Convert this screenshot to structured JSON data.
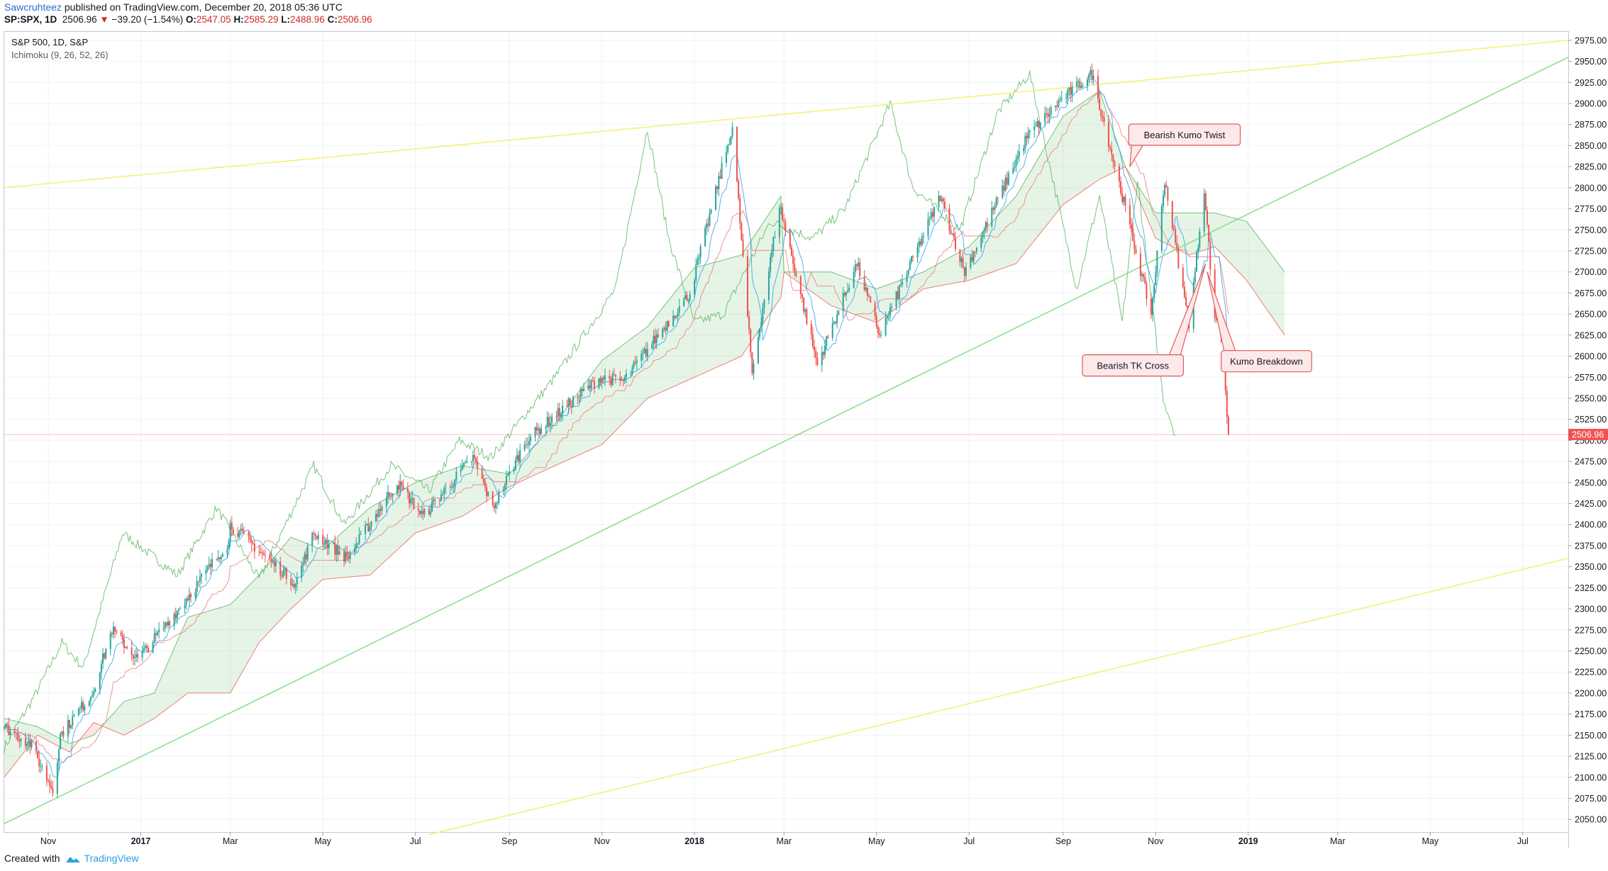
{
  "header": {
    "author": "Sawcruhteez",
    "published": "published on TradingView.com, December 20, 2018 05:36 UTC",
    "symbol": "SP:SPX, 1D",
    "last": "2506.96",
    "change_arrow": "▼",
    "change": "−39.20 (−1.54%)",
    "o_label": "O:",
    "o": "2547.05",
    "h_label": "H:",
    "h": "2585.29",
    "l_label": "L:",
    "l": "2488.96",
    "c_label": "C:",
    "c": "2506.96"
  },
  "footer": {
    "created_with": "Created with",
    "brand": "TradingView"
  },
  "colors": {
    "up": "#26a69a",
    "down": "#ef5350",
    "tenkan": "#2196f3",
    "kijun": "#e57373",
    "chikou": "#4caf50",
    "kumo_bull": "#4caf50",
    "kumo_bear": "#ef5350",
    "channel_yellow": "#f5f07a",
    "channel_green": "#8de08d",
    "price_label": "#ef5350"
  },
  "chart_data": {
    "type": "candlestick",
    "title": "S&P 500, 1D, S&P",
    "indicator": "Ichimoku (9, 26, 52, 26)",
    "last_price": 2506.96,
    "last_price_label": "2506.96",
    "ylim": [
      2035,
      2985
    ],
    "yticks": [
      2050,
      2075,
      2100,
      2125,
      2150,
      2175,
      2200,
      2225,
      2250,
      2275,
      2300,
      2325,
      2350,
      2375,
      2400,
      2425,
      2450,
      2475,
      2500,
      2525,
      2550,
      2575,
      2600,
      2625,
      2650,
      2675,
      2700,
      2725,
      2750,
      2775,
      2800,
      2825,
      2850,
      2875,
      2900,
      2925,
      2950,
      2975
    ],
    "x_range": [
      "2016-10-03",
      "2019-07-31"
    ],
    "xticks": [
      {
        "date": "2016-11-01",
        "label": "Nov",
        "bold": false
      },
      {
        "date": "2017-01-01",
        "label": "2017",
        "bold": true
      },
      {
        "date": "2017-03-01",
        "label": "Mar",
        "bold": false
      },
      {
        "date": "2017-05-01",
        "label": "May",
        "bold": false
      },
      {
        "date": "2017-07-01",
        "label": "Jul",
        "bold": false
      },
      {
        "date": "2017-09-01",
        "label": "Sep",
        "bold": false
      },
      {
        "date": "2017-11-01",
        "label": "Nov",
        "bold": false
      },
      {
        "date": "2018-01-01",
        "label": "2018",
        "bold": true
      },
      {
        "date": "2018-03-01",
        "label": "Mar",
        "bold": false
      },
      {
        "date": "2018-05-01",
        "label": "May",
        "bold": false
      },
      {
        "date": "2018-07-01",
        "label": "Jul",
        "bold": false
      },
      {
        "date": "2018-09-01",
        "label": "Sep",
        "bold": false
      },
      {
        "date": "2018-11-01",
        "label": "Nov",
        "bold": false
      },
      {
        "date": "2019-01-01",
        "label": "2019",
        "bold": true
      },
      {
        "date": "2019-03-01",
        "label": "Mar",
        "bold": false
      },
      {
        "date": "2019-05-01",
        "label": "May",
        "bold": false
      },
      {
        "date": "2019-07-01",
        "label": "Jul",
        "bold": false
      }
    ],
    "price_path": [
      [
        "2016-10-03",
        2160
      ],
      [
        "2016-10-20",
        2140
      ],
      [
        "2016-11-04",
        2085
      ],
      [
        "2016-11-09",
        2150
      ],
      [
        "2016-11-30",
        2200
      ],
      [
        "2016-12-13",
        2275
      ],
      [
        "2016-12-30",
        2240
      ],
      [
        "2017-01-26",
        2300
      ],
      [
        "2017-02-28",
        2380
      ],
      [
        "2017-03-01",
        2400
      ],
      [
        "2017-04-13",
        2330
      ],
      [
        "2017-04-25",
        2390
      ],
      [
        "2017-05-17",
        2360
      ],
      [
        "2017-06-19",
        2450
      ],
      [
        "2017-07-06",
        2410
      ],
      [
        "2017-08-08",
        2480
      ],
      [
        "2017-08-21",
        2420
      ],
      [
        "2017-09-12",
        2500
      ],
      [
        "2017-10-31",
        2575
      ],
      [
        "2017-11-15",
        2570
      ],
      [
        "2017-12-29",
        2675
      ],
      [
        "2018-01-26",
        2872
      ],
      [
        "2018-02-08",
        2580
      ],
      [
        "2018-02-26",
        2780
      ],
      [
        "2018-03-23",
        2590
      ],
      [
        "2018-04-18",
        2710
      ],
      [
        "2018-05-03",
        2625
      ],
      [
        "2018-06-12",
        2790
      ],
      [
        "2018-06-28",
        2700
      ],
      [
        "2018-08-08",
        2860
      ],
      [
        "2018-08-31",
        2905
      ],
      [
        "2018-09-20",
        2935
      ],
      [
        "2018-10-10",
        2790
      ],
      [
        "2018-10-29",
        2650
      ],
      [
        "2018-11-07",
        2810
      ],
      [
        "2018-11-23",
        2635
      ],
      [
        "2018-12-03",
        2800
      ],
      [
        "2018-12-10",
        2640
      ],
      [
        "2018-12-13",
        2650
      ],
      [
        "2018-12-19",
        2506.96
      ]
    ],
    "chikou_path": [
      [
        "2016-10-03",
        2135
      ],
      [
        "2016-10-24",
        2200
      ],
      [
        "2016-11-10",
        2260
      ],
      [
        "2016-11-24",
        2230
      ],
      [
        "2016-12-20",
        2390
      ],
      [
        "2017-01-25",
        2340
      ],
      [
        "2017-02-20",
        2420
      ],
      [
        "2017-03-20",
        2335
      ],
      [
        "2017-04-25",
        2470
      ],
      [
        "2017-05-15",
        2400
      ],
      [
        "2017-06-15",
        2470
      ],
      [
        "2017-07-10",
        2440
      ],
      [
        "2017-07-30",
        2500
      ],
      [
        "2017-08-20",
        2480
      ],
      [
        "2017-10-01",
        2575
      ],
      [
        "2017-11-10",
        2680
      ],
      [
        "2017-12-01",
        2870
      ],
      [
        "2017-12-15",
        2740
      ],
      [
        "2018-01-01",
        2640
      ],
      [
        "2018-01-20",
        2650
      ],
      [
        "2018-02-20",
        2760
      ],
      [
        "2018-03-20",
        2740
      ],
      [
        "2018-04-10",
        2775
      ],
      [
        "2018-05-10",
        2900
      ],
      [
        "2018-05-25",
        2800
      ],
      [
        "2018-06-25",
        2750
      ],
      [
        "2018-07-20",
        2890
      ],
      [
        "2018-08-10",
        2935
      ],
      [
        "2018-08-30",
        2770
      ],
      [
        "2018-09-10",
        2680
      ],
      [
        "2018-09-25",
        2790
      ],
      [
        "2018-10-10",
        2640
      ],
      [
        "2018-10-20",
        2810
      ],
      [
        "2018-10-30",
        2655
      ],
      [
        "2018-11-06",
        2550
      ],
      [
        "2018-11-14",
        2506.96
      ]
    ],
    "cloud_path": [
      [
        "2016-10-03",
        2170,
        2100
      ],
      [
        "2016-10-25",
        2160,
        2150
      ],
      [
        "2016-11-15",
        2140,
        2130
      ],
      [
        "2016-12-01",
        2150,
        2165
      ],
      [
        "2016-12-21",
        2190,
        2150
      ],
      [
        "2017-01-10",
        2200,
        2170
      ],
      [
        "2017-02-01",
        2290,
        2200
      ],
      [
        "2017-03-01",
        2305,
        2200
      ],
      [
        "2017-03-20",
        2340,
        2260
      ],
      [
        "2017-04-10",
        2385,
        2300
      ],
      [
        "2017-05-01",
        2370,
        2335
      ],
      [
        "2017-06-01",
        2420,
        2340
      ],
      [
        "2017-07-01",
        2450,
        2390
      ],
      [
        "2017-08-01",
        2470,
        2410
      ],
      [
        "2017-09-01",
        2460,
        2445
      ],
      [
        "2017-10-01",
        2520,
        2470
      ],
      [
        "2017-11-01",
        2595,
        2495
      ],
      [
        "2017-12-01",
        2635,
        2550
      ],
      [
        "2018-01-01",
        2705,
        2575
      ],
      [
        "2018-02-01",
        2720,
        2600
      ],
      [
        "2018-02-27",
        2790,
        2670
      ],
      [
        "2018-03-01",
        2700,
        2700
      ],
      [
        "2018-04-01",
        2700,
        2660
      ],
      [
        "2018-05-01",
        2680,
        2640
      ],
      [
        "2018-06-01",
        2700,
        2680
      ],
      [
        "2018-07-01",
        2730,
        2690
      ],
      [
        "2018-08-01",
        2790,
        2710
      ],
      [
        "2018-09-01",
        2885,
        2780
      ],
      [
        "2018-09-25",
        2915,
        2810
      ],
      [
        "2018-10-12",
        2825,
        2825
      ],
      [
        "2018-11-01",
        2770,
        2740
      ],
      [
        "2018-11-23",
        2770,
        2720
      ],
      [
        "2018-12-10",
        2770,
        2730
      ],
      [
        "2018-12-31",
        2760,
        2690
      ],
      [
        "2019-01-25",
        2700,
        2625
      ]
    ],
    "annotations": [
      {
        "label": "Bearish Kumo Twist",
        "date": "2018-10-15",
        "price": 2825,
        "box_date": "2018-11-20",
        "box_price": 2863
      },
      {
        "label": "Bearish TK Cross",
        "date": "2018-12-04",
        "price": 2710,
        "box_date": "2018-10-17",
        "box_price": 2589
      },
      {
        "label": "Kumo Breakdown",
        "date": "2018-12-05",
        "price": 2700,
        "box_date": "2019-01-13",
        "box_price": 2594
      }
    ],
    "trendlines": [
      {
        "color": "yellow",
        "from": [
          "2016-10-03",
          2800
        ],
        "to": [
          "2019-07-31",
          2975
        ]
      },
      {
        "color": "green",
        "from": [
          "2016-10-03",
          2045
        ],
        "to": [
          "2019-07-31",
          2955
        ]
      },
      {
        "color": "yellow",
        "from": [
          "2017-07-10",
          2032
        ],
        "to": [
          "2019-07-31",
          2360
        ]
      }
    ]
  }
}
